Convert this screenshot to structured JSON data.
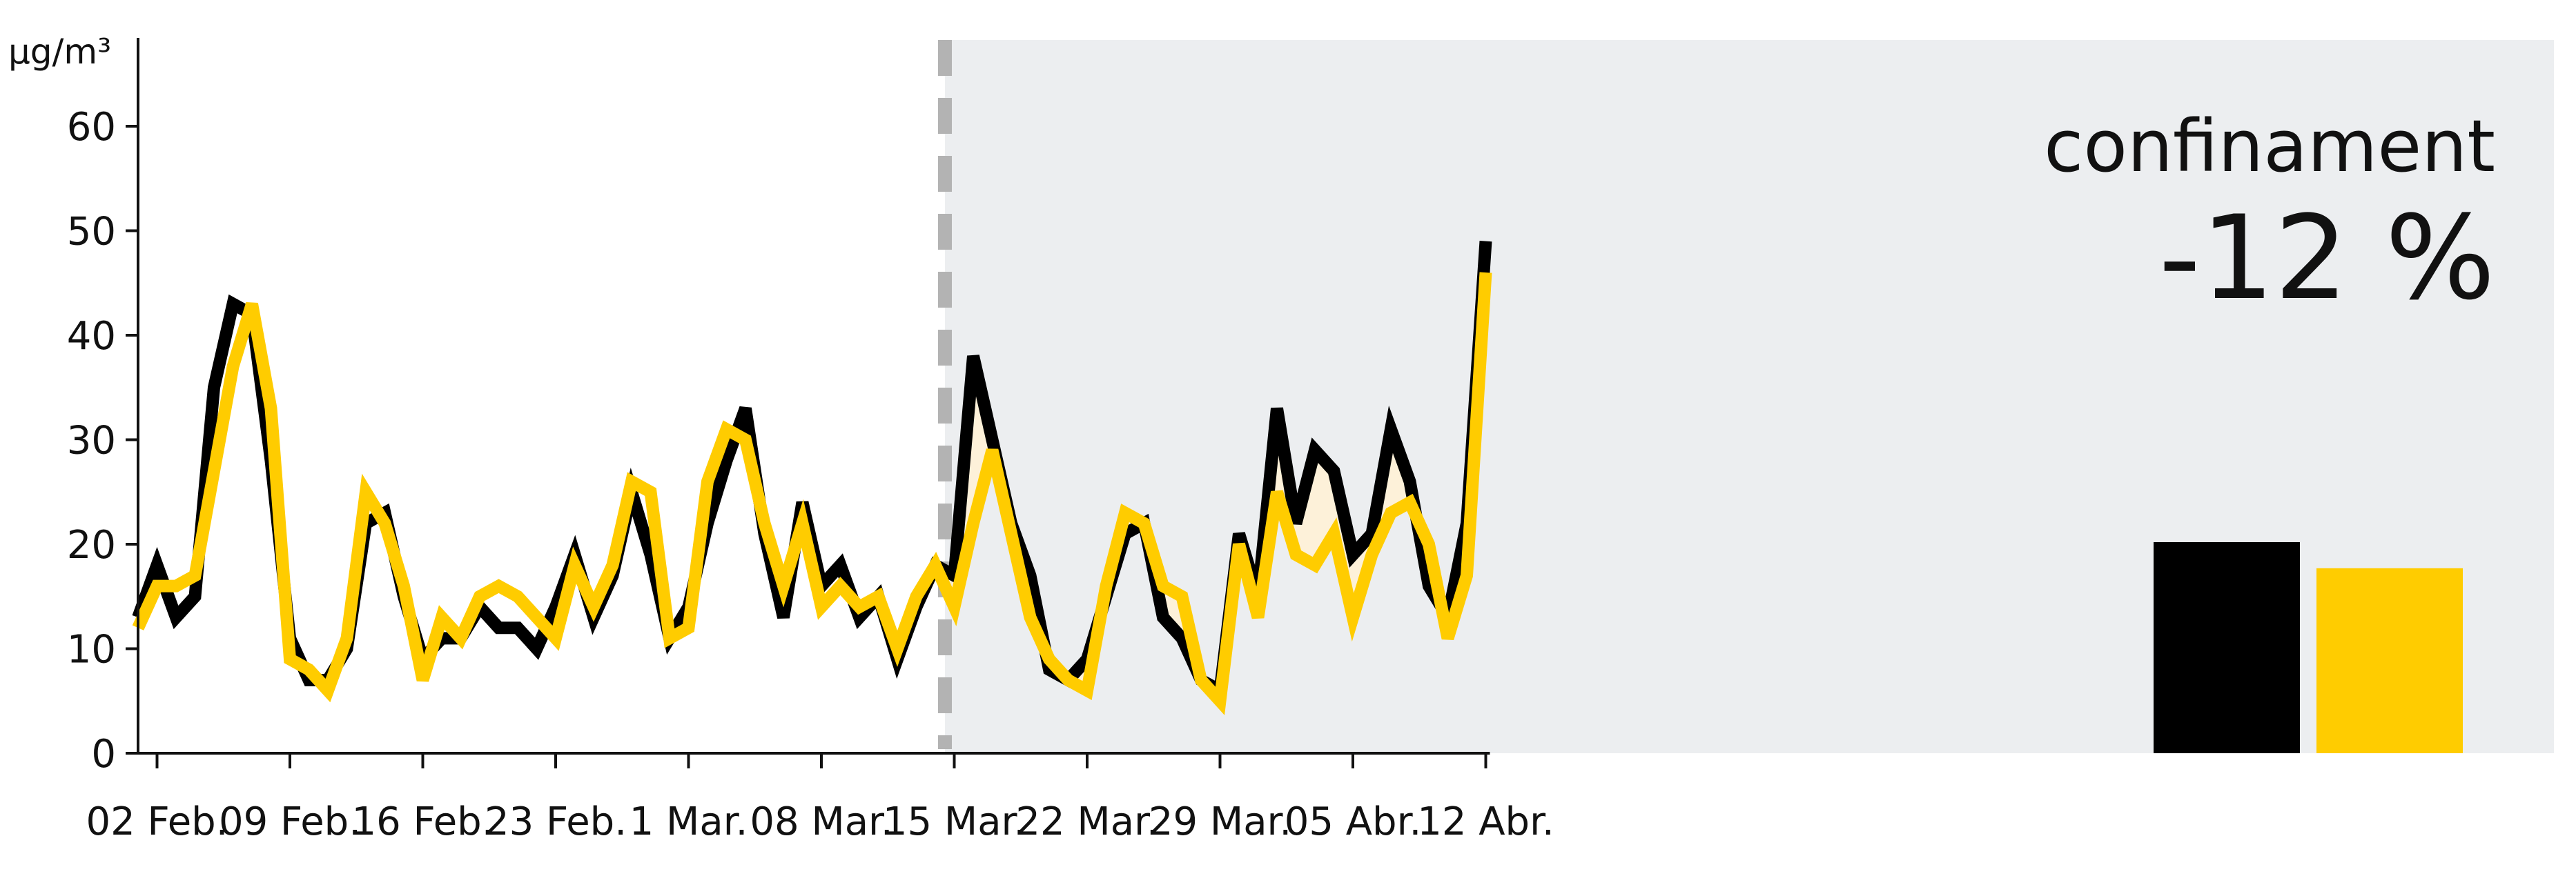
{
  "chart_data": {
    "type": "line",
    "unit_label": "µg/m³",
    "ylim": [
      0,
      60
    ],
    "y_ticks": [
      0,
      10,
      20,
      30,
      40,
      50,
      60
    ],
    "x_tick_labels": [
      "02 Feb.",
      "09 Feb.",
      "16 Feb.",
      "23 Feb.",
      "1 Mar.",
      "08 Mar.",
      "15 Mar.",
      "22 Mar.",
      "29 Mar.",
      "05 Abr.",
      "12 Abr."
    ],
    "x_dates": [
      "01 Feb.",
      "02 Feb.",
      "03 Feb.",
      "04 Feb.",
      "05 Feb.",
      "06 Feb.",
      "07 Feb.",
      "08 Feb.",
      "09 Feb.",
      "10 Feb.",
      "11 Feb.",
      "12 Feb.",
      "13 Feb.",
      "14 Feb.",
      "15 Feb.",
      "16 Feb.",
      "17 Feb.",
      "18 Feb.",
      "19 Feb.",
      "20 Feb.",
      "21 Feb.",
      "22 Feb.",
      "23 Feb.",
      "24 Feb.",
      "25 Feb.",
      "26 Feb.",
      "27 Feb.",
      "28 Feb.",
      "29 Feb.",
      "1 Mar.",
      "2 Mar.",
      "3 Mar.",
      "4 Mar.",
      "5 Mar.",
      "6 Mar.",
      "7 Mar.",
      "8 Mar.",
      "9 Mar.",
      "10 Mar.",
      "11 Mar.",
      "12 Mar.",
      "13 Mar.",
      "14 Mar.",
      "15 Mar.",
      "16 Mar.",
      "17 Mar.",
      "18 Mar.",
      "19 Mar.",
      "20 Mar.",
      "21 Mar.",
      "22 Mar.",
      "23 Mar.",
      "24 Mar.",
      "25 Mar.",
      "26 Mar.",
      "27 Mar.",
      "28 Mar.",
      "29 Mar.",
      "30 Mar.",
      "31 Mar.",
      "01 Abr.",
      "02 Abr.",
      "03 Abr.",
      "04 Abr.",
      "05 Abr.",
      "06 Abr.",
      "07 Abr.",
      "08 Abr.",
      "09 Abr.",
      "10 Abr.",
      "11 Abr.",
      "12 Abr."
    ],
    "series": [
      {
        "color": "#000000",
        "values": [
          13,
          18,
          13,
          15,
          35,
          43,
          42,
          28,
          11,
          7,
          7,
          10,
          22,
          23,
          15,
          9,
          11,
          11,
          14,
          12,
          12,
          10,
          14,
          19,
          13,
          17,
          25,
          19,
          11,
          14,
          22,
          28,
          33,
          21,
          13,
          24,
          16,
          18,
          13,
          15,
          9,
          14,
          18,
          17,
          38,
          30,
          22,
          17,
          8,
          7,
          9,
          15,
          21,
          22,
          13,
          11,
          7,
          6,
          21,
          15,
          33,
          22,
          29,
          27,
          19,
          21,
          31,
          26,
          16,
          13,
          22,
          49
        ]
      },
      {
        "color": "#FFCC00",
        "values": [
          12,
          16,
          16,
          17,
          27,
          37,
          43,
          33,
          9,
          8,
          6,
          11,
          25,
          22,
          16,
          7,
          13,
          11,
          15,
          16,
          15,
          13,
          11,
          18,
          14,
          18,
          26,
          25,
          11,
          12,
          26,
          31,
          30,
          22,
          16,
          22,
          14,
          16,
          14,
          15,
          10,
          15,
          18,
          14,
          22,
          29,
          21,
          13,
          9,
          7,
          6,
          16,
          23,
          22,
          16,
          15,
          7,
          5,
          20,
          13,
          25,
          19,
          18,
          21,
          13,
          19,
          23,
          24,
          20,
          11,
          17,
          46
        ]
      }
    ],
    "lockdown_start_index": 42,
    "shaded_region_label": "confinament",
    "change_label": "-12 %",
    "summary_bars": [
      {
        "color": "#000000",
        "value": 20.2
      },
      {
        "color": "#FFCC00",
        "value": 17.7
      }
    ]
  }
}
